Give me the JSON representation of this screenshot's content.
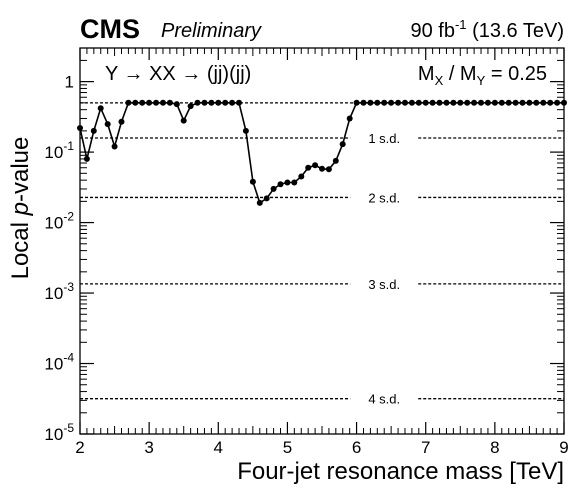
{
  "header": {
    "experiment": "CMS",
    "status": "Preliminary",
    "lumi": "90 fb",
    "lumi_exp": "-1",
    "energy": " (13.6 TeV)"
  },
  "annotations": {
    "process": "Y → XX → (jj)(jj)",
    "ratio_mx": "M",
    "ratio_sub_x": "X",
    "ratio_mid": " / M",
    "ratio_sub_y": "Y",
    "ratio_value": " = 0.25"
  },
  "chart_data": {
    "type": "line",
    "xlabel": "Four-jet resonance mass [TeV]",
    "ylabel_prefix": "Local ",
    "ylabel_italic": "p",
    "ylabel_suffix": "-value",
    "xlim": [
      2,
      9
    ],
    "ylim": [
      1e-05,
      3
    ],
    "yscale": "log",
    "x_ticks": [
      2,
      3,
      4,
      5,
      6,
      7,
      8,
      9
    ],
    "y_ticks": [
      {
        "value": 1,
        "base": "1",
        "exp": ""
      },
      {
        "value": 0.1,
        "base": "10",
        "exp": "-1"
      },
      {
        "value": 0.01,
        "base": "10",
        "exp": "-2"
      },
      {
        "value": 0.001,
        "base": "10",
        "exp": "-3"
      },
      {
        "value": 0.0001,
        "base": "10",
        "exp": "-4"
      },
      {
        "value": 1e-05,
        "base": "10",
        "exp": "-5"
      }
    ],
    "significance_lines": [
      {
        "label": "",
        "p": 0.5
      },
      {
        "label": "1 s.d.",
        "p": 0.1587
      },
      {
        "label": "2 s.d.",
        "p": 0.02275
      },
      {
        "label": "3 s.d.",
        "p": 0.00135
      },
      {
        "label": "4 s.d.",
        "p": 3.17e-05
      }
    ],
    "series": [
      {
        "x": [
          2.0,
          2.1,
          2.2,
          2.3,
          2.4,
          2.5,
          2.6,
          2.7,
          2.8,
          2.9,
          3.0,
          3.1,
          3.2,
          3.3,
          3.4,
          3.5,
          3.6,
          3.7,
          3.8,
          3.9,
          4.0,
          4.1,
          4.2,
          4.3,
          4.4,
          4.5,
          4.6,
          4.7,
          4.8,
          4.9,
          5.0,
          5.1,
          5.2,
          5.3,
          5.4,
          5.5,
          5.6,
          5.7,
          5.8,
          5.9,
          6.0,
          6.1,
          6.2,
          6.3,
          6.4,
          6.5,
          6.6,
          6.7,
          6.8,
          6.9,
          7.0,
          7.1,
          7.2,
          7.3,
          7.4,
          7.5,
          7.6,
          7.7,
          7.8,
          7.9,
          8.0,
          8.1,
          8.2,
          8.3,
          8.4,
          8.5,
          8.6,
          8.7,
          8.8,
          8.9,
          9.0
        ],
        "y": [
          0.22,
          0.08,
          0.2,
          0.42,
          0.25,
          0.12,
          0.27,
          0.5,
          0.5,
          0.5,
          0.5,
          0.5,
          0.5,
          0.5,
          0.48,
          0.28,
          0.45,
          0.5,
          0.5,
          0.5,
          0.5,
          0.5,
          0.5,
          0.5,
          0.2,
          0.038,
          0.019,
          0.022,
          0.03,
          0.035,
          0.037,
          0.037,
          0.045,
          0.06,
          0.065,
          0.058,
          0.057,
          0.075,
          0.13,
          0.3,
          0.5,
          0.5,
          0.5,
          0.5,
          0.5,
          0.5,
          0.5,
          0.5,
          0.5,
          0.5,
          0.5,
          0.5,
          0.5,
          0.5,
          0.5,
          0.5,
          0.5,
          0.5,
          0.5,
          0.5,
          0.5,
          0.5,
          0.5,
          0.5,
          0.5,
          0.5,
          0.5,
          0.5,
          0.5,
          0.5,
          0.5
        ]
      }
    ]
  }
}
